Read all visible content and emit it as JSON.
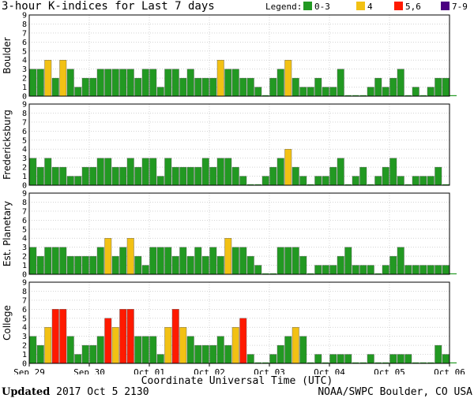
{
  "header": {
    "title": "3-hour K-indices for Last 7 days",
    "legend_label": "Legend:",
    "legend": [
      {
        "label": "0-3",
        "color": "#229922"
      },
      {
        "label": "4",
        "color": "#f2c114"
      },
      {
        "label": "5,6",
        "color": "#ff1a00"
      },
      {
        "label": "7-9",
        "color": "#4b0082"
      }
    ]
  },
  "footer": {
    "updated_label": "Updated",
    "updated_value": "2017 Oct  5 2130",
    "credit": "NOAA/SWPC Boulder, CO USA"
  },
  "chart_data": {
    "type": "bar",
    "title": "3-hour K-indices for Last 7 days",
    "xlabel": "Coordinate Universal Time (UTC)",
    "x_tick_labels": [
      "Sep 29",
      "Sep 30",
      "Oct 01",
      "Oct 02",
      "Oct 03",
      "Oct 04",
      "Oct 05",
      "Oct 06"
    ],
    "y_tick_labels": [
      "0",
      "1",
      "2",
      "3",
      "4",
      "5",
      "6",
      "7",
      "8",
      "9"
    ],
    "ylim": [
      0,
      9
    ],
    "color_scale": {
      "0-3": "#229922",
      "4": "#f2c114",
      "5,6": "#ff1a00",
      "7-9": "#4b0082"
    },
    "grid": true,
    "panels": [
      {
        "name": "Boulder",
        "values": [
          3,
          3,
          4,
          2,
          4,
          3,
          1,
          2,
          2,
          3,
          3,
          3,
          3,
          3,
          2,
          3,
          3,
          1,
          3,
          3,
          2,
          3,
          2,
          2,
          2,
          4,
          3,
          3,
          2,
          2,
          1,
          0,
          2,
          3,
          4,
          2,
          1,
          1,
          2,
          1,
          1,
          3,
          0,
          0,
          0,
          1,
          2,
          1,
          2,
          3,
          0,
          1,
          0,
          1,
          2,
          2,
          0
        ]
      },
      {
        "name": "Fredericksburg",
        "values": [
          3,
          2,
          3,
          2,
          2,
          1,
          1,
          2,
          2,
          3,
          3,
          2,
          2,
          3,
          2,
          3,
          3,
          1,
          3,
          2,
          2,
          2,
          2,
          3,
          2,
          3,
          3,
          2,
          1,
          0,
          0,
          1,
          2,
          3,
          4,
          2,
          1,
          0,
          1,
          1,
          2,
          3,
          0,
          1,
          2,
          0,
          1,
          2,
          3,
          1,
          0,
          1,
          1,
          1,
          2,
          0
        ]
      },
      {
        "name": "Est. Planetary",
        "values": [
          3,
          2,
          3,
          3,
          3,
          2,
          2,
          2,
          2,
          3,
          4,
          2,
          3,
          4,
          2,
          1,
          3,
          3,
          3,
          2,
          3,
          2,
          3,
          2,
          3,
          2,
          4,
          3,
          3,
          2,
          1,
          0,
          0,
          3,
          3,
          3,
          2,
          0,
          1,
          1,
          1,
          2,
          3,
          1,
          1,
          1,
          0,
          1,
          2,
          3,
          1,
          1,
          1,
          1,
          1,
          1,
          0
        ]
      },
      {
        "name": "College",
        "values": [
          3,
          2,
          4,
          6,
          6,
          3,
          1,
          2,
          2,
          3,
          5,
          4,
          6,
          6,
          3,
          3,
          3,
          1,
          4,
          6,
          4,
          3,
          2,
          2,
          2,
          3,
          2,
          4,
          5,
          1,
          0,
          0,
          1,
          2,
          3,
          4,
          3,
          0,
          1,
          0,
          1,
          1,
          1,
          0,
          0,
          1,
          0,
          0,
          1,
          1,
          1,
          0,
          0,
          0,
          2,
          1,
          0
        ]
      }
    ]
  }
}
